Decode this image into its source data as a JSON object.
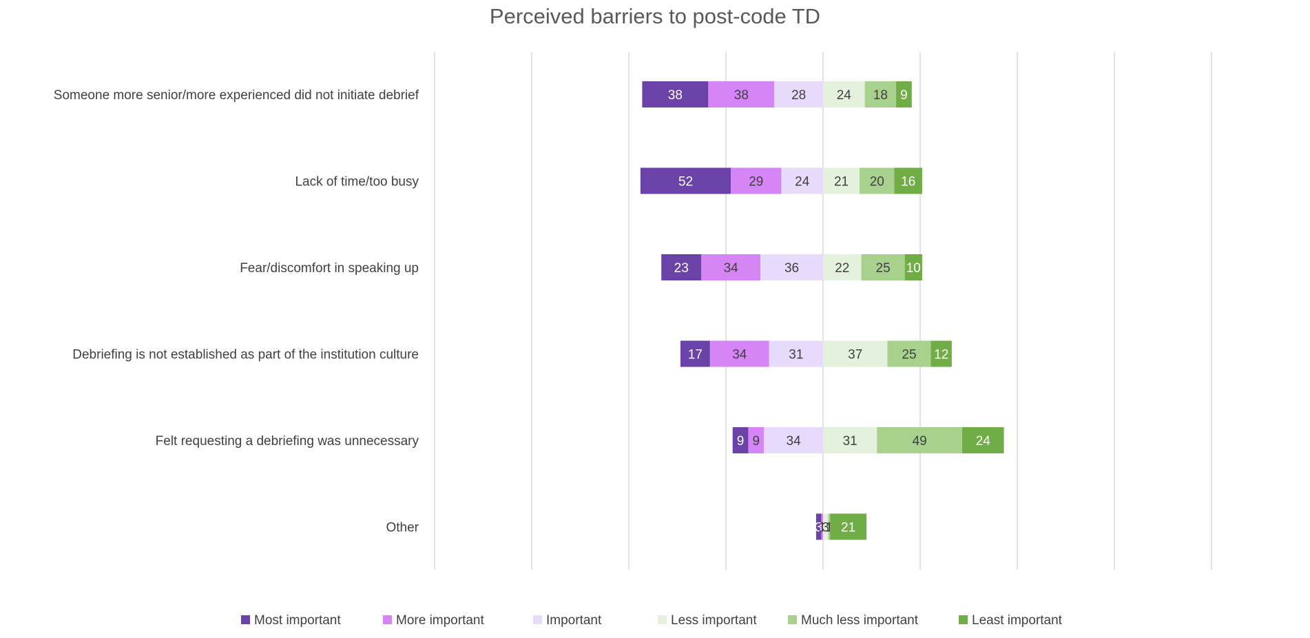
{
  "chart_data": {
    "type": "bar",
    "orientation": "horizontal",
    "stacked": true,
    "title": "Perceived barriers to post-code TD",
    "categories": [
      "Someone more senior/more experienced did not initiate debrief",
      "Lack of time/too busy",
      "Fear/discomfort in speaking up",
      "Debriefing is not established as part of the institution culture",
      "Felt requesting a debriefing was unnecessary",
      "Other"
    ],
    "series": [
      {
        "name": "Most important",
        "color": "#6a42a8",
        "label_color": "#ffffff",
        "values": [
          38,
          52,
          23,
          17,
          9,
          3
        ]
      },
      {
        "name": "More important",
        "color": "#d585f5",
        "label_color": "#404040",
        "values": [
          38,
          29,
          34,
          34,
          9,
          1
        ]
      },
      {
        "name": "Important",
        "color": "#e8dafa",
        "label_color": "#404040",
        "values": [
          28,
          24,
          36,
          31,
          34,
          0
        ]
      },
      {
        "name": "Less important",
        "color": "#e4f1dc",
        "label_color": "#404040",
        "values": [
          24,
          21,
          22,
          37,
          31,
          3
        ]
      },
      {
        "name": "Much less important",
        "color": "#a9d18e",
        "label_color": "#404040",
        "values": [
          18,
          20,
          25,
          25,
          49,
          1
        ]
      },
      {
        "name": "Least important",
        "color": "#70ad47",
        "label_color": "#ffffff",
        "values": [
          9,
          16,
          10,
          12,
          24,
          21
        ]
      }
    ],
    "diverging": true,
    "center_after_series": 3,
    "xlabel": "",
    "ylabel": "",
    "grid": true,
    "legend_position": "bottom"
  }
}
